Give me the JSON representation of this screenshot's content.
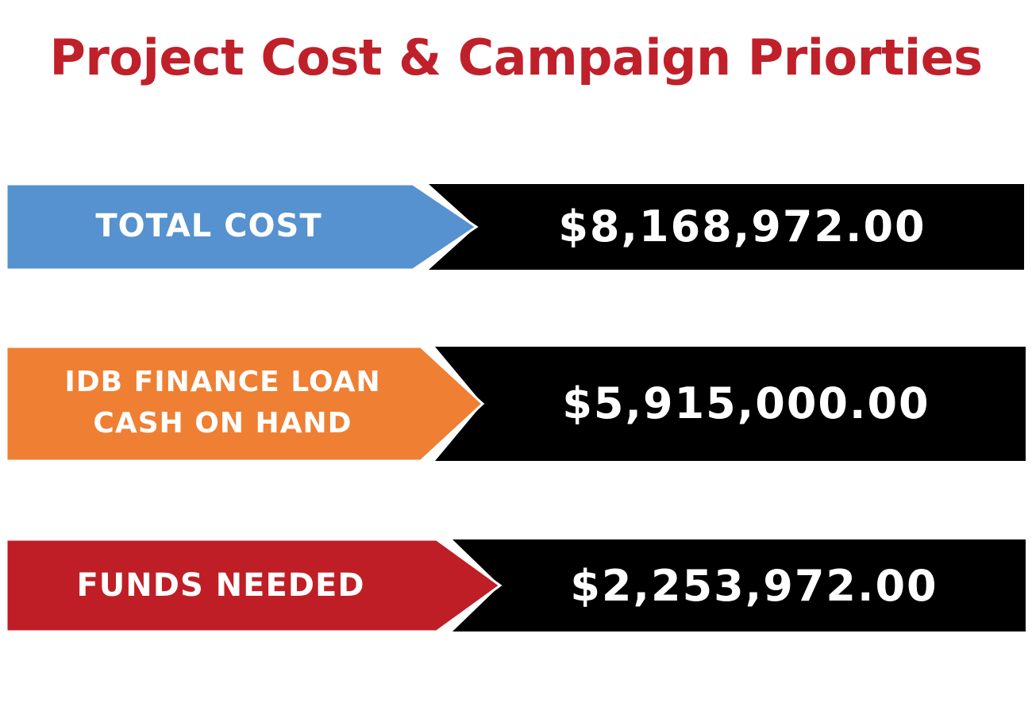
{
  "title": "Project Cost & Campaign Priorties",
  "colors": {
    "title": "#c0202a",
    "value_background": "#000000",
    "value_text": "#ffffff",
    "label_text": "#ffffff"
  },
  "items": [
    {
      "label_lines": [
        "TOTAL COST"
      ],
      "amount": "$8,168,972.00",
      "color": "#5592cf"
    },
    {
      "label_lines": [
        "IDB FINANCE LOAN",
        "CASH ON HAND"
      ],
      "amount": "$5,915,000.00",
      "color": "#ef7f32"
    },
    {
      "label_lines": [
        "FUNDS NEEDED"
      ],
      "amount": "$2,253,972.00",
      "color": "#bf1e26"
    }
  ]
}
